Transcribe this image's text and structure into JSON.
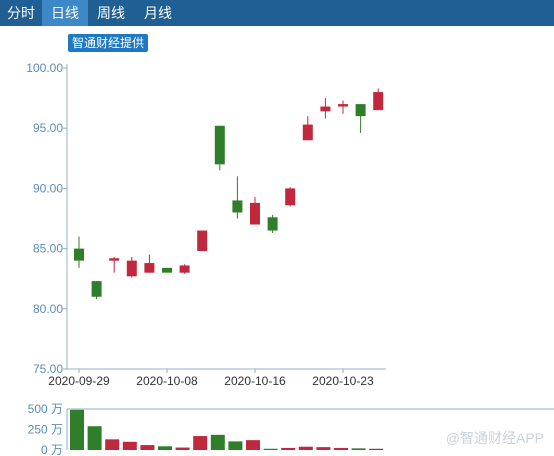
{
  "tabs": [
    {
      "label": "分时",
      "active": false
    },
    {
      "label": "日线",
      "active": true
    },
    {
      "label": "周线",
      "active": false
    },
    {
      "label": "月线",
      "active": false
    }
  ],
  "watermark_top": "智通财经提供",
  "watermark_bottom": "@智通财经APP",
  "colors": {
    "up": "#c0283d",
    "down": "#2f7f2a",
    "axis": "#8fb0cc",
    "tab_bar": "#1f5f93",
    "tab_active": "#3d88c7"
  },
  "chart_data": [
    {
      "type": "candlestick",
      "yticks": [
        "100.00",
        "95.00",
        "90.00",
        "85.00",
        "80.00",
        "75.00"
      ],
      "ylim": [
        75,
        100
      ],
      "xticks": [
        {
          "label": "2020-09-29",
          "index": 0
        },
        {
          "label": "2020-10-08",
          "index": 5
        },
        {
          "label": "2020-10-16",
          "index": 10
        },
        {
          "label": "2020-10-23",
          "index": 15
        }
      ],
      "candles": [
        {
          "open": 85.0,
          "close": 84.0,
          "high": 86.0,
          "low": 83.4
        },
        {
          "open": 82.3,
          "close": 81.0,
          "high": 82.3,
          "low": 80.8
        },
        {
          "open": 84.0,
          "close": 84.2,
          "high": 84.3,
          "low": 83.0
        },
        {
          "open": 82.7,
          "close": 84.0,
          "high": 84.3,
          "low": 82.6
        },
        {
          "open": 83.0,
          "close": 83.8,
          "high": 84.5,
          "low": 83.0
        },
        {
          "open": 83.4,
          "close": 83.0,
          "high": 83.4,
          "low": 83.0
        },
        {
          "open": 83.0,
          "close": 83.6,
          "high": 83.7,
          "low": 82.9
        },
        {
          "open": 84.8,
          "close": 86.5,
          "high": 86.5,
          "low": 84.8
        },
        {
          "open": 95.2,
          "close": 92.0,
          "high": 95.2,
          "low": 91.5
        },
        {
          "open": 89.0,
          "close": 88.0,
          "high": 91.0,
          "low": 87.5
        },
        {
          "open": 87.0,
          "close": 88.8,
          "high": 89.3,
          "low": 87.0
        },
        {
          "open": 87.6,
          "close": 86.5,
          "high": 87.8,
          "low": 86.3
        },
        {
          "open": 88.6,
          "close": 90.0,
          "high": 90.1,
          "low": 88.5
        },
        {
          "open": 94.0,
          "close": 95.3,
          "high": 96.0,
          "low": 94.0
        },
        {
          "open": 96.4,
          "close": 96.8,
          "high": 97.5,
          "low": 95.8
        },
        {
          "open": 96.8,
          "close": 97.0,
          "high": 97.3,
          "low": 96.2
        },
        {
          "open": 97.0,
          "close": 96.0,
          "high": 97.0,
          "low": 94.6
        },
        {
          "open": 96.5,
          "close": 98.0,
          "high": 98.3,
          "low": 96.5
        }
      ]
    },
    {
      "type": "bar",
      "yticks": [
        "500 万",
        "250 万",
        "0 万"
      ],
      "ylim": [
        0,
        500
      ],
      "unit": "万",
      "values": [
        490,
        290,
        130,
        100,
        60,
        45,
        30,
        170,
        185,
        105,
        120,
        15,
        25,
        40,
        35,
        25,
        20,
        15
      ],
      "directions": [
        "down",
        "down",
        "up",
        "up",
        "up",
        "down",
        "up",
        "up",
        "down",
        "down",
        "up",
        "down",
        "up",
        "up",
        "up",
        "up",
        "down",
        "up"
      ]
    }
  ]
}
